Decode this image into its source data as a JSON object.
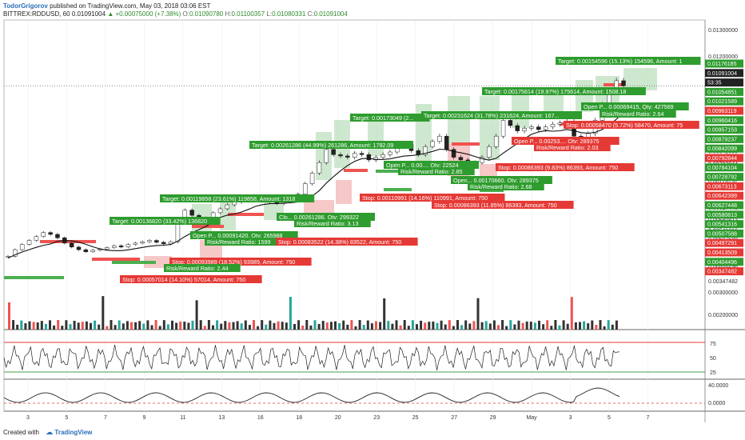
{
  "header": {
    "author": "TodorGrigorov",
    "published": "published on TradingView.com, May 03, 2018 03:06 EST",
    "symbol": "BITTREX:RDDUSD, 60",
    "last": "0.01091004",
    "change": "▲ +0.00075000 (+7.38%)",
    "open_label": "O:",
    "open": "0.01090780",
    "high_label": "H:",
    "high": "0.01100357",
    "low_label": "L:",
    "low": "0.01080331",
    "close_label": "C:",
    "close": "0.01091004"
  },
  "footer": {
    "created_with": "Created with",
    "brand": "TradingView"
  },
  "colors": {
    "up": "#26a69a",
    "down": "#ef5350",
    "green_box": "#2e9c2e",
    "red_box": "#e53935",
    "target_zone": "#a5d6a7",
    "stop_zone": "#ef9a9a"
  },
  "chart_data": {
    "type": "candlestick",
    "price_axis": {
      "ticks": [
        "0.01300000",
        "0.01200000",
        "0.00960416",
        "0.00957153",
        "0.00879237",
        "0.00842099",
        "0.00792844",
        "0.00784104",
        "0.00728792",
        "0.00700000",
        "0.00673113",
        "0.00642399",
        "0.00627448",
        "0.00580813",
        "0.00541316",
        "0.00507588",
        "0.00497291",
        "0.00413509",
        "0.00404496",
        "0.00347482"
      ],
      "badges": [
        {
          "text": "0.01176185",
          "color": "#2e9c2e"
        },
        {
          "text": "0.01091004",
          "color": "#222222"
        },
        {
          "text": "53:35",
          "color": "#222222"
        },
        {
          "text": "0.01054851",
          "color": "#2e9c2e"
        },
        {
          "text": "0.01021589",
          "color": "#2e9c2e"
        },
        {
          "text": "0.00963119",
          "color": "#e53935"
        },
        {
          "text": "0.00960416",
          "color": "#2e9c2e"
        },
        {
          "text": "0.00957153",
          "color": "#2e9c2e"
        },
        {
          "text": "0.00879237",
          "color": "#2e9c2e"
        },
        {
          "text": "0.00842099",
          "color": "#2e9c2e"
        },
        {
          "text": "0.00792844",
          "color": "#e53935"
        },
        {
          "text": "0.00784104",
          "color": "#2e9c2e"
        },
        {
          "text": "0.00728792",
          "color": "#2e9c2e"
        },
        {
          "text": "0.00673113",
          "color": "#e53935"
        },
        {
          "text": "0.00642399",
          "color": "#e53935"
        },
        {
          "text": "0.00627448",
          "color": "#2e9c2e"
        },
        {
          "text": "0.00580813",
          "color": "#2e9c2e"
        },
        {
          "text": "0.00541316",
          "color": "#2e9c2e"
        },
        {
          "text": "0.00507588",
          "color": "#2e9c2e"
        },
        {
          "text": "0.00497291",
          "color": "#e53935"
        },
        {
          "text": "0.00413509",
          "color": "#e53935"
        },
        {
          "text": "0.00404496",
          "color": "#2e9c2e"
        },
        {
          "text": "0.00347482",
          "color": "#e53935"
        }
      ],
      "volume_ticks": [
        "0.00300000",
        "0.00200000"
      ],
      "rsi_ticks": [
        "75",
        "50",
        "25"
      ],
      "osc_ticks": [
        "40.0000",
        "0.0000"
      ]
    },
    "x_ticks": [
      "3",
      "5",
      "7",
      "9",
      "11",
      "13",
      "16",
      "18",
      "20",
      "23",
      "25",
      "27",
      "29",
      "May",
      "3",
      "5",
      "7"
    ],
    "price_series": [
      0.00445,
      0.0047,
      0.0049,
      0.00505,
      0.0052,
      0.00535,
      0.00528,
      0.00515,
      0.00495,
      0.0048,
      0.0047,
      0.00462,
      0.00468,
      0.00472,
      0.00478,
      0.00485,
      0.0048,
      0.0049,
      0.00495,
      0.005,
      0.00505,
      0.00498,
      0.00492,
      0.005,
      0.0058,
      0.0062,
      0.006,
      0.0059,
      0.00585,
      0.0061,
      0.00625,
      0.0064,
      0.0065,
      0.00655,
      0.0066,
      0.00668,
      0.00655,
      0.0065,
      0.00645,
      0.0066,
      0.00665,
      0.0068,
      0.0072,
      0.0076,
      0.008,
      0.0085,
      0.0083,
      0.00825,
      0.0082,
      0.00835,
      0.0083,
      0.0081,
      0.0082,
      0.0083,
      0.0084,
      0.0086,
      0.0087,
      0.00845,
      0.0083,
      0.0086,
      0.0088,
      0.009,
      0.0085,
      0.0082,
      0.0081,
      0.0079,
      0.008,
      0.0082,
      0.0086,
      0.009,
      0.0096,
      0.0094,
      0.0092,
      0.0093,
      0.00935,
      0.00925,
      0.00935,
      0.00945,
      0.0095,
      0.00955,
      0.009,
      0.0088,
      0.0091,
      0.0096,
      0.0102,
      0.0107,
      0.0111,
      0.01091
    ],
    "annotations": [
      {
        "text": "Target: 0.00154596 (15.13%) 154596, Amount: 1",
        "kind": "target"
      },
      {
        "text": "Target: 0.00175614 (19.97%) 175614, Amount: 1508.18",
        "kind": "target"
      },
      {
        "text": "Open P... 0.00069415, Qty: 427569",
        "kind": "target"
      },
      {
        "text": "Risk/Reward Ratio: 2.64",
        "kind": "target"
      },
      {
        "text": "Target: 0.00173049 (2...",
        "kind": "target"
      },
      {
        "text": "Target: 0.00231624 (31.78%) 231624, Amount: 167...",
        "kind": "target"
      },
      {
        "text": "Stop: 0.00058470 (5.72%) 58470, Amount: 75",
        "kind": "stop"
      },
      {
        "text": "Target: 0.00261286 (44.99%) 261286, Amount: 1782.09",
        "kind": "target"
      },
      {
        "text": "Open P... 0.00253..., Qty: 289375",
        "kind": "stop"
      },
      {
        "text": "Risk/Reward Ratio: 2.03",
        "kind": "stop"
      },
      {
        "text": "Open P... 0.00..., Qty: 22524",
        "kind": "target"
      },
      {
        "text": "Risk/Reward Ratio: 2.85",
        "kind": "target"
      },
      {
        "text": "Stop: 0.00086393 (9.83%) 86393, Amount: 750",
        "kind": "stop"
      },
      {
        "text": "Open... 0.00170660, Qty: 289375",
        "kind": "target"
      },
      {
        "text": "Risk/Reward Ratio: 2.68",
        "kind": "target"
      },
      {
        "text": "Target: 0.00119858 (23.61%) 119858, Amount: 1318",
        "kind": "target"
      },
      {
        "text": "Stop: 0.00110991 (14.16%) 110991, Amount: 750",
        "kind": "stop"
      },
      {
        "text": "Stop: 0.00086393 (11.85%) 86393, Amount: 750",
        "kind": "stop"
      },
      {
        "text": "Clo... 0.00261286, Qty: 299322",
        "kind": "target"
      },
      {
        "text": "Risk/Reward Ratio: 3.13",
        "kind": "target"
      },
      {
        "text": "Target: 0.00136820 (33.42%) 136820",
        "kind": "target"
      },
      {
        "text": "Open P... 0.00091420, Qty: 265988",
        "kind": "target"
      },
      {
        "text": "Risk/Reward Ratio: 1599",
        "kind": "target"
      },
      {
        "text": "Stop: 0.00083522 (14.38%) 83522, Amount: 750",
        "kind": "stop"
      },
      {
        "text": "Stop: 0.00093989 (18.52%) 93989, Amount: 750",
        "kind": "stop"
      },
      {
        "text": "Risk/Reward Ratio: 2.44",
        "kind": "target"
      },
      {
        "text": "Stop: 0.00057014 (14.10%) 57014, Amount: 750",
        "kind": "stop"
      }
    ]
  }
}
